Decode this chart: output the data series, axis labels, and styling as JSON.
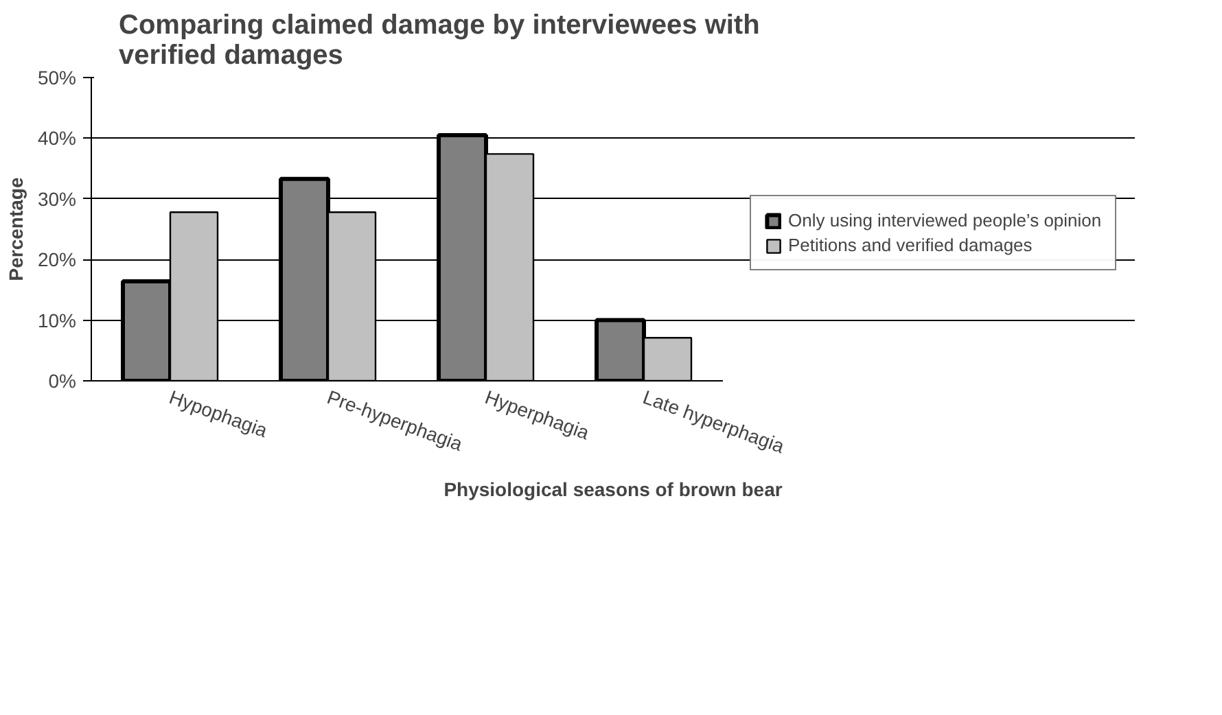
{
  "chart_data": {
    "type": "bar",
    "title": "Comparing claimed damage by interviewees with\nverified damages",
    "xlabel": "Physiological seasons of brown bear",
    "ylabel": "Percentage",
    "categories": [
      "Hypophagia",
      "Pre-hyperphagia",
      "Hyperphagia",
      "Late hyperphagia"
    ],
    "series": [
      {
        "name": "Only using interviewed people’s opinion",
        "color": "#808080",
        "values": [
          16.4,
          33.3,
          40.5,
          10.0
        ]
      },
      {
        "name": "Petitions and verified damages",
        "color": "#c0c0c0",
        "values": [
          27.8,
          27.8,
          37.4,
          7.1
        ]
      }
    ],
    "ylim": [
      0,
      50
    ],
    "yticks": [
      {
        "value": 0,
        "label": "0%"
      },
      {
        "value": 10,
        "label": "10%"
      },
      {
        "value": 20,
        "label": "20%"
      },
      {
        "value": 30,
        "label": "30%"
      },
      {
        "value": 40,
        "label": "40%"
      },
      {
        "value": 50,
        "label": "50%"
      }
    ],
    "grid": "y",
    "legend": "right"
  }
}
